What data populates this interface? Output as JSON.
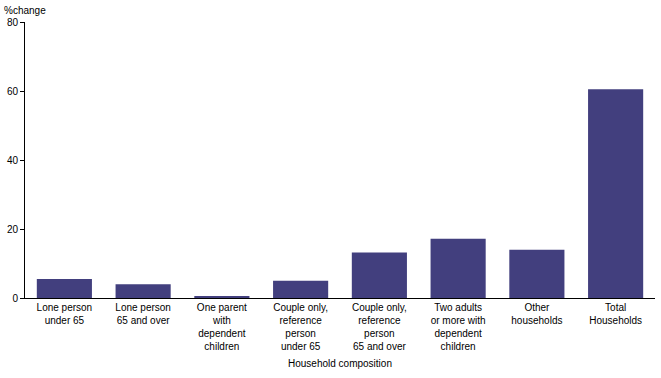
{
  "chart_data": {
    "type": "bar",
    "y_label": "%change",
    "x_label": "Household composition",
    "categories": [
      "Lone person\nunder 65",
      "Lone person\n65 and over",
      "One parent\nwith\ndependent\nchildren",
      "Couple only,\nreference\nperson\nunder 65",
      "Couple only,\nreference\nperson\n65 and over",
      "Two adults\nor more with\ndependent\nchildren",
      "Other\nhouseholds",
      "Total\nHouseholds"
    ],
    "values": [
      5.5,
      4.0,
      0.5,
      5.0,
      13.2,
      17.2,
      14.0,
      60.5
    ],
    "color": "#423f7e",
    "ylim": [
      0,
      80
    ],
    "yticks": [
      0,
      20,
      40,
      60,
      80
    ],
    "grid": false
  }
}
